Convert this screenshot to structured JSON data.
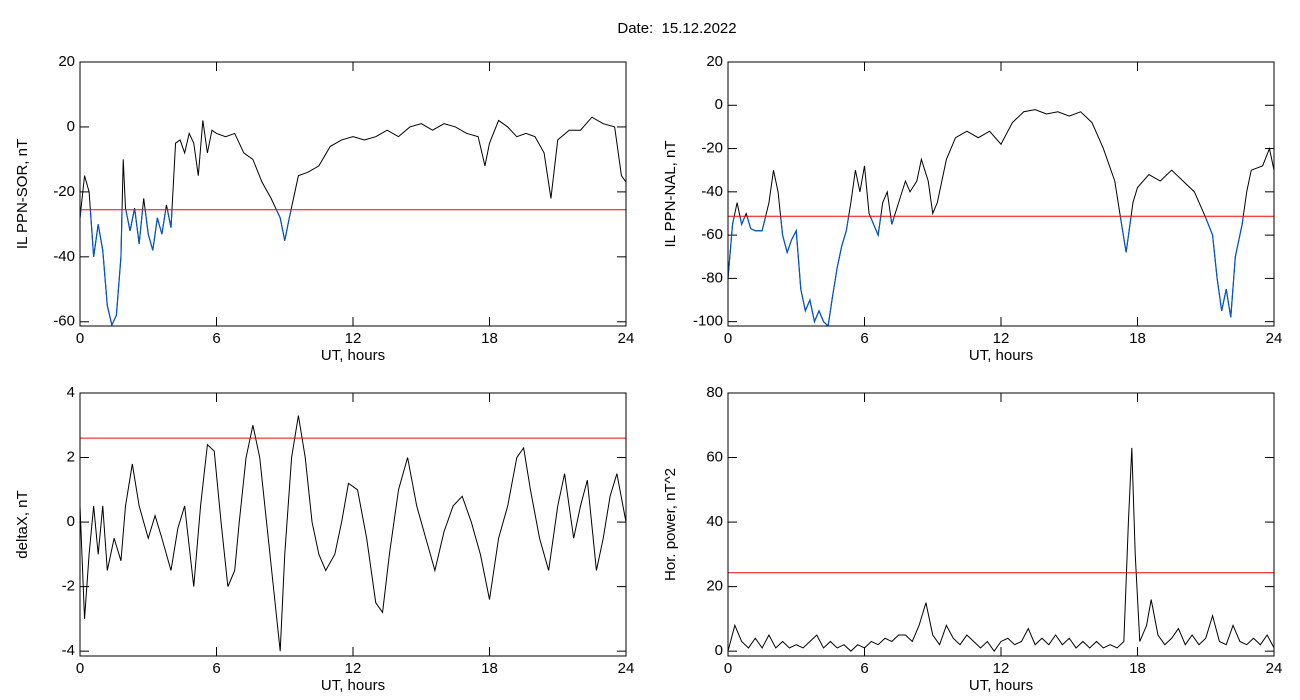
{
  "title": "Date:  15.12.2022",
  "chart_data": [
    {
      "type": "line",
      "xlabel": "UT, hours",
      "ylabel": "IL PPN-SOR, nT",
      "color": "#000000",
      "below_color": "#0055cc",
      "threshold": -25.5,
      "threshold_color": "#ff0000",
      "xlim": [
        0,
        24
      ],
      "xticks": [
        0,
        6,
        12,
        18,
        24
      ],
      "ylim": [
        -61.3,
        20
      ],
      "yticks": [
        -60,
        -40,
        -20,
        0,
        20
      ],
      "x": [
        0,
        0.2,
        0.4,
        0.6,
        0.8,
        1.0,
        1.2,
        1.4,
        1.6,
        1.8,
        1.9,
        2.0,
        2.2,
        2.4,
        2.6,
        2.8,
        3.0,
        3.2,
        3.4,
        3.6,
        3.8,
        4.0,
        4.2,
        4.4,
        4.6,
        4.8,
        5.0,
        5.2,
        5.4,
        5.6,
        5.8,
        6.0,
        6.4,
        6.8,
        7.2,
        7.6,
        8.0,
        8.4,
        8.8,
        9.0,
        9.2,
        9.6,
        10,
        10.5,
        11,
        11.5,
        12,
        12.5,
        13,
        13.5,
        14,
        14.5,
        15,
        15.5,
        16,
        16.5,
        17,
        17.5,
        17.8,
        18,
        18.4,
        18.8,
        19.2,
        19.6,
        20,
        20.4,
        20.7,
        21,
        21.5,
        22,
        22.5,
        23,
        23.5,
        23.8,
        24
      ],
      "values": [
        -28,
        -15,
        -20,
        -40,
        -30,
        -38,
        -55,
        -61,
        -58,
        -40,
        -10,
        -25,
        -32,
        -25,
        -36,
        -22,
        -33,
        -38,
        -28,
        -33,
        -24,
        -31,
        -5,
        -4,
        -8,
        -2,
        -5,
        -15,
        2,
        -8,
        -1,
        -2,
        -3,
        -2,
        -8,
        -10,
        -17,
        -22,
        -28,
        -35,
        -28,
        -15,
        -14,
        -12,
        -6,
        -4,
        -3,
        -4,
        -3,
        -1,
        -3,
        0,
        1,
        -1,
        1,
        0,
        -2,
        -3,
        -12,
        -5,
        2,
        0,
        -3,
        -2,
        -3,
        -8,
        -22,
        -4,
        -1,
        -1,
        3,
        1,
        0,
        -15,
        -17
      ]
    },
    {
      "type": "line",
      "xlabel": "UT, hours",
      "ylabel": "IL PPN-NAL, nT",
      "color": "#000000",
      "below_color": "#0055cc",
      "threshold": -51.3,
      "threshold_color": "#ff0000",
      "xlim": [
        0,
        24
      ],
      "xticks": [
        0,
        6,
        12,
        18,
        24
      ],
      "ylim": [
        -102,
        20
      ],
      "yticks": [
        -100,
        -80,
        -60,
        -40,
        -20,
        0,
        20
      ],
      "x": [
        0,
        0.2,
        0.4,
        0.6,
        0.8,
        1.0,
        1.2,
        1.5,
        1.8,
        2.0,
        2.2,
        2.4,
        2.6,
        2.8,
        3.0,
        3.2,
        3.4,
        3.6,
        3.8,
        4.0,
        4.2,
        4.4,
        4.6,
        4.8,
        5.0,
        5.2,
        5.4,
        5.6,
        5.8,
        6.0,
        6.2,
        6.4,
        6.6,
        6.8,
        7.0,
        7.2,
        7.5,
        7.8,
        8.0,
        8.3,
        8.5,
        8.8,
        9.0,
        9.2,
        9.4,
        9.6,
        10,
        10.5,
        11,
        11.5,
        12,
        12.5,
        13,
        13.5,
        14,
        14.5,
        15,
        15.5,
        16,
        16.5,
        17,
        17.3,
        17.5,
        17.8,
        18,
        18.5,
        19,
        19.5,
        20,
        20.5,
        21,
        21.3,
        21.5,
        21.7,
        21.9,
        22.1,
        22.3,
        22.6,
        22.8,
        23,
        23.5,
        23.8,
        24
      ],
      "values": [
        -80,
        -55,
        -45,
        -55,
        -50,
        -57,
        -58,
        -58,
        -45,
        -30,
        -40,
        -60,
        -68,
        -62,
        -58,
        -85,
        -95,
        -90,
        -100,
        -95,
        -100,
        -102,
        -88,
        -75,
        -65,
        -58,
        -45,
        -30,
        -40,
        -28,
        -50,
        -55,
        -60,
        -45,
        -40,
        -55,
        -45,
        -35,
        -40,
        -35,
        -25,
        -35,
        -50,
        -45,
        -35,
        -25,
        -15,
        -12,
        -15,
        -12,
        -18,
        -8,
        -3,
        -2,
        -4,
        -3,
        -5,
        -3,
        -8,
        -20,
        -35,
        -55,
        -68,
        -45,
        -38,
        -32,
        -35,
        -30,
        -35,
        -40,
        -52,
        -60,
        -80,
        -95,
        -85,
        -98,
        -70,
        -55,
        -40,
        -30,
        -28,
        -20,
        -30
      ]
    },
    {
      "type": "line",
      "xlabel": "UT, hours",
      "ylabel": "deltaX, nT",
      "color": "#000000",
      "threshold": 2.6,
      "threshold_color": "#ff0000",
      "xlim": [
        0,
        24
      ],
      "xticks": [
        0,
        6,
        12,
        18,
        24
      ],
      "ylim": [
        -4.15,
        4
      ],
      "yticks": [
        -4,
        -2,
        0,
        2,
        4
      ],
      "x": [
        0,
        0.2,
        0.4,
        0.6,
        0.8,
        1.0,
        1.2,
        1.5,
        1.8,
        2.0,
        2.3,
        2.6,
        3.0,
        3.3,
        3.6,
        4.0,
        4.3,
        4.6,
        5.0,
        5.3,
        5.6,
        5.9,
        6.2,
        6.5,
        6.8,
        7.0,
        7.3,
        7.6,
        7.9,
        8.2,
        8.5,
        8.8,
        9.0,
        9.3,
        9.6,
        9.9,
        10.2,
        10.5,
        10.8,
        11.2,
        11.5,
        11.8,
        12.2,
        12.6,
        13.0,
        13.3,
        13.6,
        14.0,
        14.4,
        14.8,
        15.2,
        15.6,
        16.0,
        16.4,
        16.8,
        17.2,
        17.6,
        18.0,
        18.4,
        18.8,
        19.2,
        19.5,
        19.8,
        20.2,
        20.6,
        21.0,
        21.3,
        21.7,
        22.0,
        22.3,
        22.7,
        23.0,
        23.3,
        23.6,
        24
      ],
      "values": [
        0.5,
        -3,
        -1,
        0.5,
        -1,
        0.5,
        -1.5,
        -0.5,
        -1.2,
        0.5,
        1.8,
        0.5,
        -0.5,
        0.2,
        -0.5,
        -1.5,
        -0.2,
        0.5,
        -2,
        0.5,
        2.4,
        2.2,
        0,
        -2,
        -1.5,
        0,
        2,
        3,
        2,
        0,
        -2,
        -4,
        -1,
        2,
        3.3,
        2,
        0,
        -1,
        -1.5,
        -1,
        0,
        1.2,
        1.0,
        -0.5,
        -2.5,
        -2.8,
        -1,
        1,
        2,
        0.5,
        -0.5,
        -1.5,
        -0.3,
        0.5,
        0.8,
        0,
        -1,
        -2.4,
        -0.5,
        0.5,
        2,
        2.3,
        1,
        -0.5,
        -1.5,
        0.5,
        1.5,
        -0.5,
        0.5,
        1.3,
        -1.5,
        -0.5,
        0.8,
        1.5,
        0
      ]
    },
    {
      "type": "line",
      "xlabel": "UT, hours",
      "ylabel": "Hor. power, nT^2",
      "color": "#000000",
      "threshold": 24.3,
      "threshold_color": "#ff0000",
      "xlim": [
        0,
        24
      ],
      "xticks": [
        0,
        6,
        12,
        18,
        24
      ],
      "ylim": [
        -1.5,
        80
      ],
      "yticks": [
        0,
        20,
        40,
        60,
        80
      ],
      "x": [
        0,
        0.3,
        0.6,
        0.9,
        1.2,
        1.5,
        1.8,
        2.1,
        2.4,
        2.7,
        3.0,
        3.3,
        3.6,
        3.9,
        4.2,
        4.5,
        4.8,
        5.1,
        5.4,
        5.7,
        6.0,
        6.3,
        6.6,
        6.9,
        7.2,
        7.5,
        7.8,
        8.1,
        8.4,
        8.7,
        9.0,
        9.3,
        9.6,
        9.9,
        10.2,
        10.5,
        10.8,
        11.1,
        11.4,
        11.7,
        12.0,
        12.3,
        12.6,
        12.9,
        13.2,
        13.5,
        13.8,
        14.1,
        14.4,
        14.7,
        15.0,
        15.3,
        15.6,
        15.9,
        16.2,
        16.5,
        16.8,
        17.1,
        17.4,
        17.6,
        17.75,
        17.9,
        18.1,
        18.4,
        18.6,
        18.9,
        19.2,
        19.5,
        19.8,
        20.1,
        20.4,
        20.7,
        21.0,
        21.3,
        21.6,
        21.9,
        22.2,
        22.5,
        22.8,
        23.1,
        23.4,
        23.7,
        24
      ],
      "values": [
        0,
        8,
        3,
        1,
        4,
        1,
        5,
        1,
        3,
        1,
        2,
        1,
        3,
        5,
        1,
        3,
        1,
        2,
        0,
        2,
        1,
        3,
        2,
        4,
        3,
        5,
        5,
        3,
        8,
        15,
        5,
        2,
        8,
        4,
        2,
        5,
        3,
        1,
        3,
        0,
        3,
        4,
        2,
        3,
        7,
        2,
        4,
        2,
        5,
        2,
        4,
        1,
        3,
        1,
        3,
        1,
        2,
        1,
        3,
        40,
        63,
        30,
        3,
        8,
        16,
        5,
        2,
        4,
        7,
        2,
        5,
        2,
        4,
        11,
        3,
        2,
        8,
        3,
        2,
        4,
        2,
        5,
        1
      ]
    }
  ]
}
